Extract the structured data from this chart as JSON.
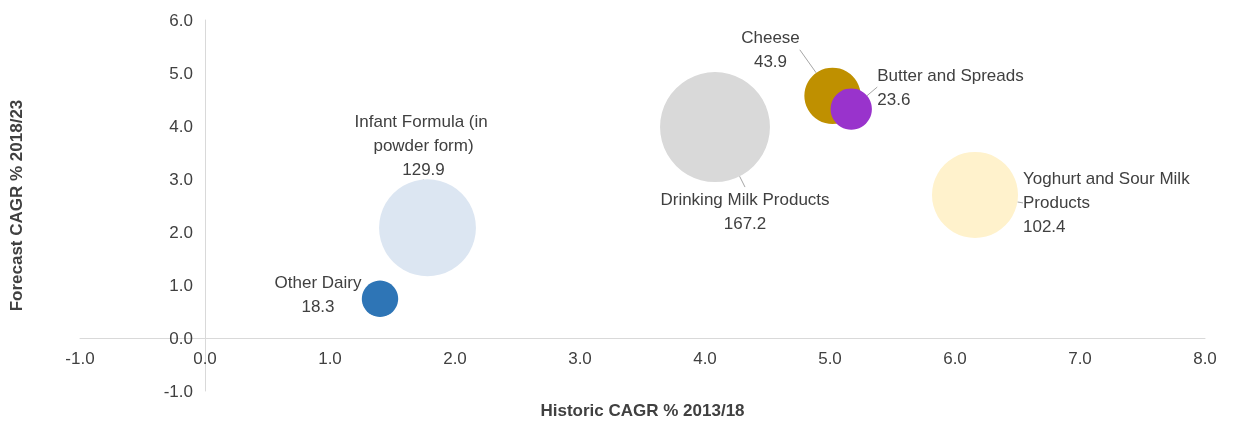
{
  "chart_data": {
    "type": "bubble",
    "xlabel": "Historic CAGR % 2013/18",
    "ylabel": "Forecast CAGR % 2018/23",
    "xlim": [
      -1,
      8
    ],
    "xticks": [
      {
        "value": -1,
        "label": "-1.0"
      },
      {
        "value": 0,
        "label": "0.0"
      },
      {
        "value": 1,
        "label": "1.0"
      },
      {
        "value": 2,
        "label": "2.0"
      },
      {
        "value": 3,
        "label": "3.0"
      },
      {
        "value": 4,
        "label": "4.0"
      },
      {
        "value": 5,
        "label": "5.0"
      },
      {
        "value": 6,
        "label": "6.0"
      },
      {
        "value": 7,
        "label": "7.0"
      },
      {
        "value": 8,
        "label": "8.0"
      }
    ],
    "ylim": [
      -1,
      6
    ],
    "yticks": [
      {
        "value": -1,
        "label": "-1.0"
      },
      {
        "value": 0,
        "label": "0.0"
      },
      {
        "value": 1,
        "label": "1.0"
      },
      {
        "value": 2,
        "label": "2.0"
      },
      {
        "value": 3,
        "label": "3.0"
      },
      {
        "value": 4,
        "label": "4.0"
      },
      {
        "value": 5,
        "label": "5.0"
      },
      {
        "value": 6,
        "label": "6.0"
      }
    ],
    "grid": false,
    "legend": false,
    "series": [
      {
        "name": "Other Dairy",
        "color": "#2e75b6",
        "x": [
          1.4
        ],
        "values": [
          0.74
        ],
        "sizes": [
          18.3
        ],
        "value_labels": [
          "18.3"
        ]
      },
      {
        "name": "Infant Formula (in powder form)",
        "color": "#dce6f2",
        "x": [
          1.78
        ],
        "values": [
          2.08
        ],
        "sizes": [
          129.9
        ],
        "value_labels": [
          "129.9"
        ]
      },
      {
        "name": "Drinking Milk Products",
        "color": "#d9d9d9",
        "x": [
          4.08
        ],
        "values": [
          3.98
        ],
        "sizes": [
          167.2
        ],
        "value_labels": [
          "167.2"
        ]
      },
      {
        "name": "Cheese",
        "color": "#bf9000",
        "x": [
          5.02
        ],
        "values": [
          4.57
        ],
        "sizes": [
          43.9
        ],
        "value_labels": [
          "43.9"
        ]
      },
      {
        "name": "Butter and Spreads",
        "color": "#9933cc",
        "x": [
          5.17
        ],
        "values": [
          4.32
        ],
        "sizes": [
          23.6
        ],
        "value_labels": [
          "23.6"
        ]
      },
      {
        "name": "Yoghurt and Sour Milk Products",
        "color": "#fff2cc",
        "x": [
          6.16
        ],
        "values": [
          2.7
        ],
        "sizes": [
          102.4
        ],
        "value_labels": [
          "102.4"
        ]
      }
    ]
  }
}
